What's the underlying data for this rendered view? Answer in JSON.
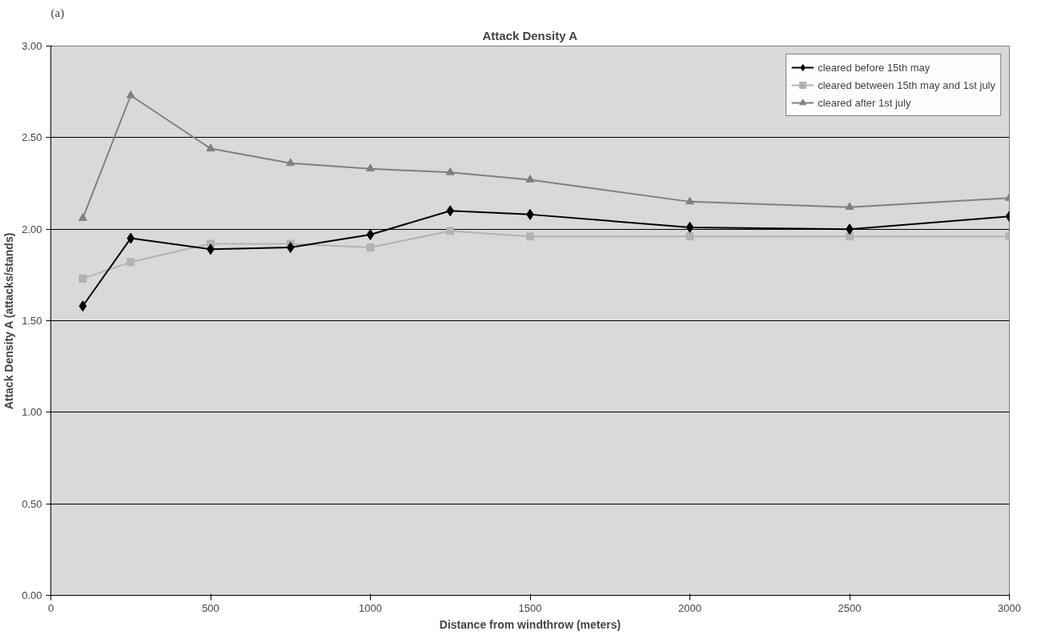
{
  "chart_data": {
    "type": "line",
    "title": "Attack Density A",
    "xlabel": "Distance from windthrow (meters)",
    "ylabel": "Attack Density A (attacks/stands)",
    "annotations": [
      "(a)"
    ],
    "x": [
      100,
      250,
      500,
      750,
      1000,
      1250,
      1500,
      2000,
      2500,
      3000
    ],
    "series": [
      {
        "name": "cleared before 15th may",
        "color": "#000000",
        "marker": "diamond",
        "values": [
          1.58,
          1.95,
          1.89,
          1.9,
          1.97,
          2.1,
          2.08,
          2.01,
          2.0,
          2.07
        ]
      },
      {
        "name": "cleared between 15th may and 1st july",
        "color": "#b3b3b3",
        "marker": "square",
        "values": [
          1.73,
          1.82,
          1.92,
          1.92,
          1.9,
          1.99,
          1.96,
          1.96,
          1.96,
          1.96
        ]
      },
      {
        "name": "cleared after 1st july",
        "color": "#808080",
        "marker": "triangle",
        "values": [
          2.06,
          2.73,
          2.44,
          2.36,
          2.33,
          2.31,
          2.27,
          2.15,
          2.12,
          2.17
        ]
      }
    ],
    "xlim": [
      0,
      3000
    ],
    "xticks": [
      0,
      500,
      1000,
      1500,
      2000,
      2500,
      3000
    ],
    "ylim": [
      0,
      3
    ],
    "yticks": [
      {
        "value": 0,
        "label": "0.00"
      },
      {
        "value": 0.5,
        "label": "0.50"
      },
      {
        "value": 1,
        "label": "1.00"
      },
      {
        "value": 1.5,
        "label": "1.50"
      },
      {
        "value": 2,
        "label": "2.00"
      },
      {
        "value": 2.5,
        "label": "2.50"
      },
      {
        "value": 3,
        "label": "3.00"
      }
    ],
    "grid": "y",
    "legend": "top right",
    "line_style": "solid"
  }
}
